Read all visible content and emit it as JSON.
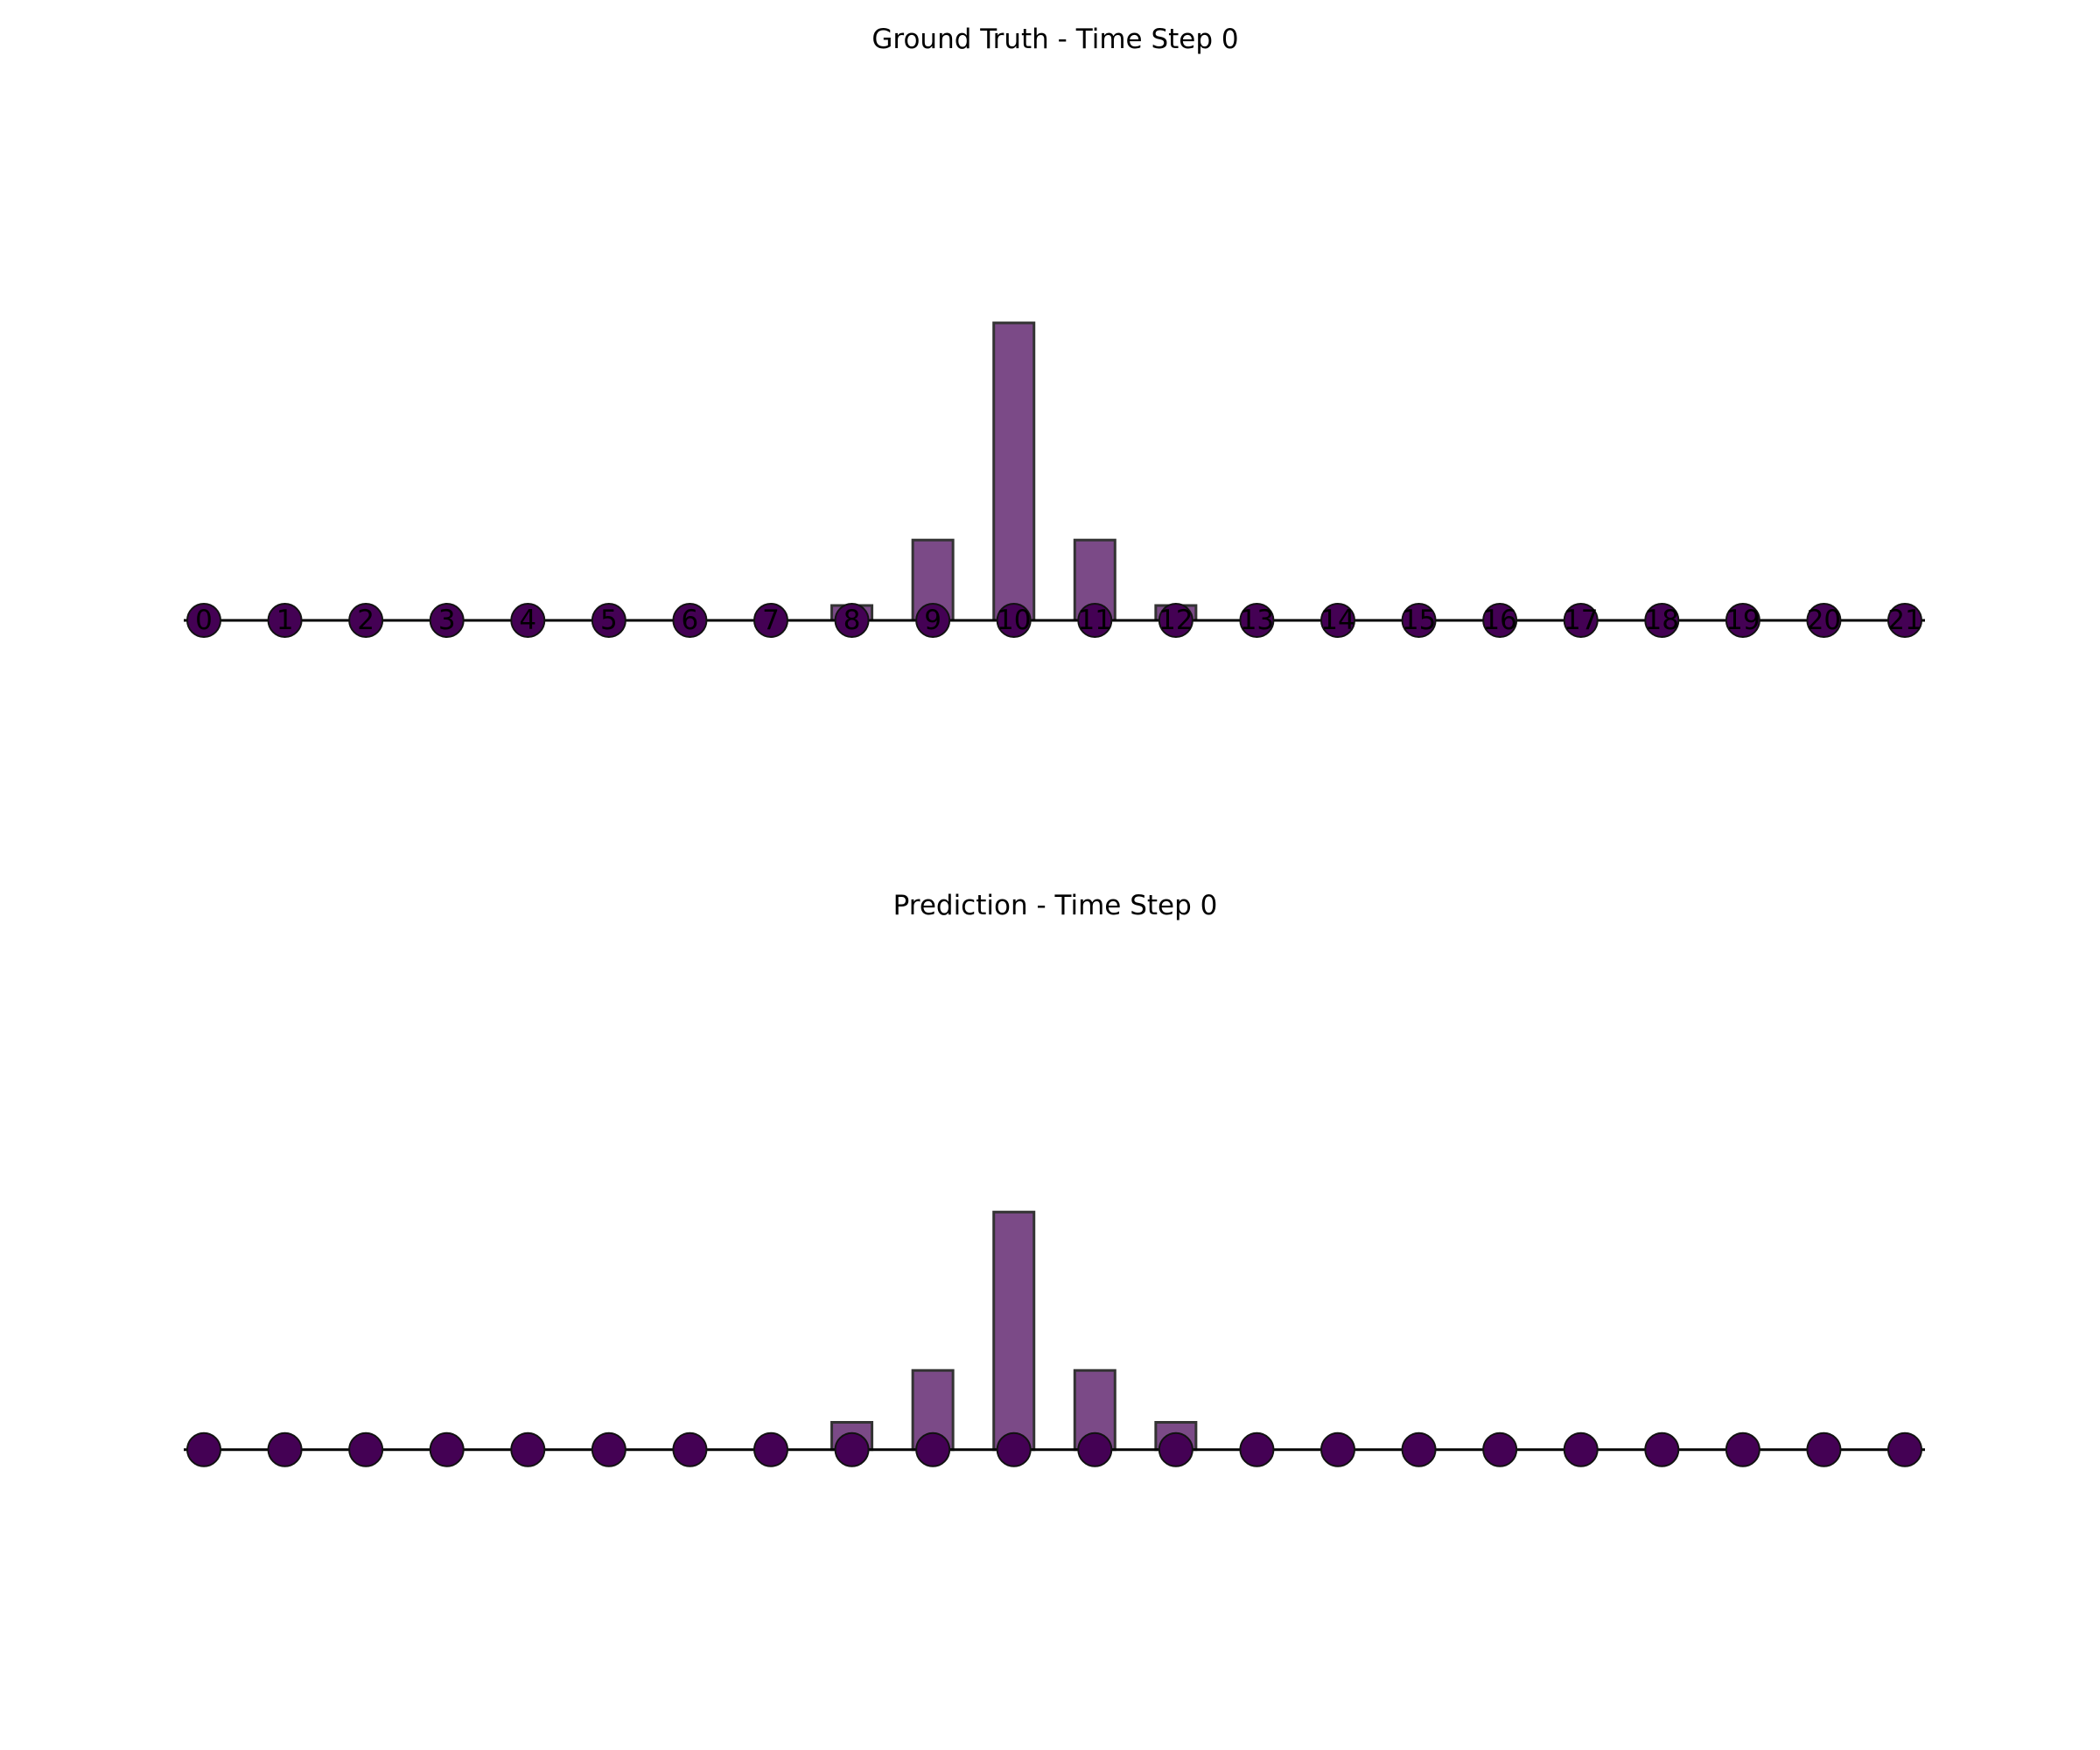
{
  "chart_data": [
    {
      "type": "bar",
      "title": "Ground Truth - Time Step 0",
      "categories": [
        0,
        1,
        2,
        3,
        4,
        5,
        6,
        7,
        8,
        9,
        10,
        11,
        12,
        13,
        14,
        15,
        16,
        17,
        18,
        19,
        20,
        21
      ],
      "tick_labels": [
        "0",
        "1",
        "2",
        "3",
        "4",
        "5",
        "6",
        "7",
        "8",
        "9",
        "10",
        "11",
        "12",
        "13",
        "14",
        "15",
        "16",
        "17",
        "18",
        "19",
        "20",
        "21"
      ],
      "values": [
        0,
        0,
        0,
        0,
        0,
        0,
        0,
        0,
        0.05,
        0.27,
        1.0,
        0.27,
        0.05,
        0,
        0,
        0,
        0,
        0,
        0,
        0,
        0,
        0
      ],
      "show_node_labels": true,
      "ylim": [
        -0.9,
        1.85
      ],
      "axes": "off",
      "grid": false
    },
    {
      "type": "bar",
      "title": "Prediction - Time Step 0",
      "categories": [
        0,
        1,
        2,
        3,
        4,
        5,
        6,
        7,
        8,
        9,
        10,
        11,
        12,
        13,
        14,
        15,
        16,
        17,
        18,
        19,
        20,
        21
      ],
      "tick_labels": [],
      "values": [
        0,
        0,
        0,
        0,
        0,
        0,
        0,
        0,
        0.1,
        0.29,
        0.87,
        0.29,
        0.1,
        0,
        0,
        0,
        0,
        0,
        0,
        0,
        0,
        0
      ],
      "show_node_labels": false,
      "ylim": [
        -1.1,
        1.88
      ],
      "axes": "off",
      "grid": false
    }
  ],
  "colors": {
    "bar_fill": "#7b4a87",
    "bar_edge": "#333333",
    "node_fill": "#440154",
    "node_edge": "#111111",
    "line": "#000000"
  }
}
